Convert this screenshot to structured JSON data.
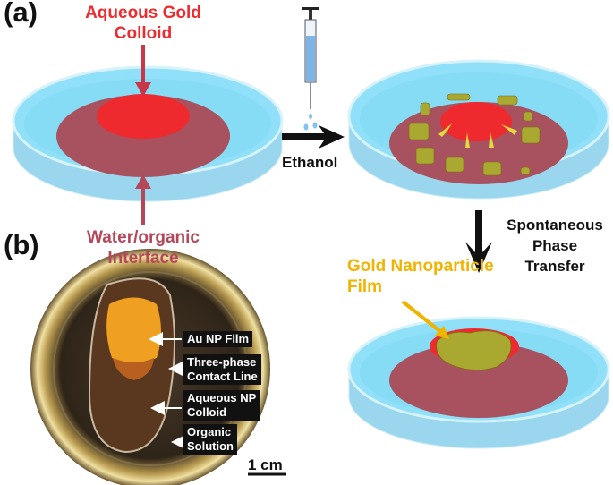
{
  "panel_a": {
    "label": "(a)"
  },
  "panel_b": {
    "label": "(b)"
  },
  "colors": {
    "colloid": "#ee2a2e",
    "interface": "#a9525f",
    "water": "#8fdcf5",
    "film": "#f0b400",
    "annotation_red": "#b5475a"
  },
  "annotations": {
    "colloid_line1": "Aqueous Gold",
    "colloid_line2": "Colloid",
    "interface_line1": "Water/organic",
    "interface_line2": "Interface",
    "ethanol": "Ethanol",
    "transfer_line1": "Spontaneous",
    "transfer_line2": "Phase",
    "transfer_line3": "Transfer",
    "film_line1": "Gold Nanoparticle",
    "film_line2": "Film"
  },
  "photo": {
    "labels": [
      {
        "line1": "Au NP Film",
        "line2": ""
      },
      {
        "line1": "Three-phase",
        "line2": "Contact Line"
      },
      {
        "line1": "Aqueous NP",
        "line2": "Colloid"
      },
      {
        "line1": "Organic",
        "line2": "Solution"
      }
    ],
    "scale_bar": "1 cm"
  }
}
